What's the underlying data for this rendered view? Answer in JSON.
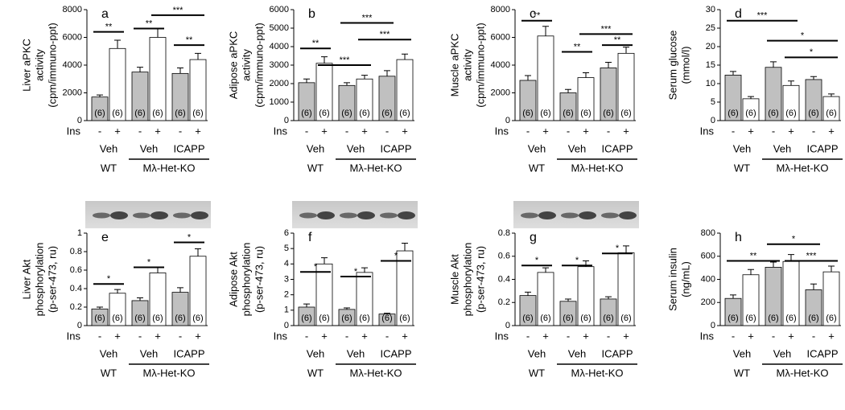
{
  "chart_data": [
    {
      "type": "bar",
      "panel": "a",
      "ylabel": [
        "Liver aPKC",
        "activity",
        "(cpm/immuno-ppt)"
      ],
      "ylim": [
        0,
        8000
      ],
      "yticks": [
        0,
        2000,
        4000,
        6000,
        8000
      ],
      "values": [
        1700,
        5200,
        3500,
        6000,
        3400,
        4400
      ],
      "errors": [
        150,
        600,
        350,
        650,
        400,
        450
      ],
      "colors": [
        "#c0c0c0",
        "#ffffff",
        "#c0c0c0",
        "#ffffff",
        "#c0c0c0",
        "#ffffff"
      ],
      "n_labels": [
        "(6)",
        "(6)",
        "(6)",
        "(6)",
        "(6)",
        "(6)"
      ],
      "significance": [
        "**",
        "**",
        "***",
        "**"
      ],
      "ins_label": "Ins",
      "ins_signs": [
        "-",
        "+",
        "-",
        "+",
        "-",
        "+"
      ],
      "treatments": [
        "Veh",
        "Veh",
        "ICAPP"
      ],
      "genotypes": [
        "WT",
        "Mλ-Het-KO"
      ]
    },
    {
      "type": "bar",
      "panel": "b",
      "ylabel": [
        "Adipose aPKC",
        "activity",
        "(cpm/immuno-ppt)"
      ],
      "ylim": [
        0,
        6000
      ],
      "yticks": [
        0,
        1000,
        2000,
        3000,
        4000,
        5000,
        6000
      ],
      "values": [
        2050,
        3100,
        1900,
        2250,
        2400,
        3300
      ],
      "errors": [
        200,
        350,
        150,
        200,
        300,
        300
      ],
      "colors": [
        "#c0c0c0",
        "#ffffff",
        "#c0c0c0",
        "#ffffff",
        "#c0c0c0",
        "#ffffff"
      ],
      "n_labels": [
        "(6)",
        "(6)",
        "(6)",
        "(6)",
        "(6)",
        "(6)"
      ],
      "significance": [
        "**",
        "***",
        "***",
        "***"
      ],
      "ins_label": "Ins",
      "ins_signs": [
        "-",
        "+",
        "-",
        "+",
        "-",
        "+"
      ],
      "treatments": [
        "Veh",
        "Veh",
        "ICAPP"
      ],
      "genotypes": [
        "WT",
        "Mλ-Het-KO"
      ]
    },
    {
      "type": "bar",
      "panel": "c",
      "ylabel": [
        "Muscle aPKC",
        "activity",
        "(cpm/immuno-ppt)"
      ],
      "ylim": [
        0,
        8000
      ],
      "yticks": [
        0,
        2000,
        4000,
        6000,
        8000
      ],
      "values": [
        2900,
        6100,
        2000,
        3100,
        3800,
        4850
      ],
      "errors": [
        350,
        700,
        250,
        350,
        400,
        450
      ],
      "colors": [
        "#c0c0c0",
        "#ffffff",
        "#c0c0c0",
        "#ffffff",
        "#c0c0c0",
        "#ffffff"
      ],
      "n_labels": [
        "(6)",
        "(6)",
        "(6)",
        "(6)",
        "(6)",
        "(6)"
      ],
      "significance": [
        "**",
        "**",
        "***",
        "**"
      ],
      "ins_label": "Ins",
      "ins_signs": [
        "-",
        "+",
        "-",
        "+",
        "-",
        "+"
      ],
      "treatments": [
        "Veh",
        "Veh",
        "ICAPP"
      ],
      "genotypes": [
        "WT",
        "Mλ-Het-KO"
      ]
    },
    {
      "type": "bar",
      "panel": "d",
      "ylabel": [
        "Serum glucose",
        "(mmol/l)"
      ],
      "ylim": [
        0,
        30
      ],
      "yticks": [
        0,
        5,
        10,
        15,
        20,
        25,
        30
      ],
      "values": [
        12.3,
        5.9,
        14.4,
        9.5,
        11.1,
        6.5
      ],
      "errors": [
        1,
        0.6,
        1.5,
        1.2,
        0.8,
        0.7
      ],
      "colors": [
        "#c0c0c0",
        "#ffffff",
        "#c0c0c0",
        "#ffffff",
        "#c0c0c0",
        "#ffffff"
      ],
      "n_labels": [
        "(6)",
        "(6)",
        "(6)",
        "(6)",
        "(6)",
        "(6)"
      ],
      "significance": [
        "***",
        "*",
        "*"
      ],
      "ins_label": "Ins",
      "ins_signs": [
        "-",
        "+",
        "-",
        "+",
        "-",
        "+"
      ],
      "treatments": [
        "Veh",
        "Veh",
        "ICAPP"
      ],
      "genotypes": [
        "WT",
        "Mλ-Het-KO"
      ]
    },
    {
      "type": "bar",
      "panel": "e",
      "ylabel": [
        "Liver Akt",
        "phosphorylation",
        "(p-ser-473, ru)"
      ],
      "ylim": [
        0,
        1
      ],
      "yticks": [
        0,
        0.2,
        0.4,
        0.6,
        0.8,
        1
      ],
      "values": [
        0.18,
        0.35,
        0.27,
        0.57,
        0.36,
        0.75
      ],
      "errors": [
        0.02,
        0.04,
        0.03,
        0.06,
        0.05,
        0.08
      ],
      "colors": [
        "#c0c0c0",
        "#ffffff",
        "#c0c0c0",
        "#ffffff",
        "#c0c0c0",
        "#ffffff"
      ],
      "n_labels": [
        "(6)",
        "(6)",
        "(6)",
        "(6)",
        "(6)",
        "(6)"
      ],
      "significance": [
        "*",
        "*",
        "*"
      ],
      "ins_label": "Ins",
      "ins_signs": [
        "-",
        "+",
        "-",
        "+",
        "-",
        "+"
      ],
      "treatments": [
        "Veh",
        "Veh",
        "ICAPP"
      ],
      "genotypes": [
        "WT",
        "Mλ-Het-KO"
      ]
    },
    {
      "type": "bar",
      "panel": "f",
      "ylabel": [
        "Adipose Akt",
        "phosphorylation",
        "(p-ser-473, ru)"
      ],
      "ylim": [
        0,
        6
      ],
      "yticks": [
        0,
        1,
        2,
        3,
        4,
        5,
        6
      ],
      "values": [
        1.2,
        4.0,
        1.05,
        3.45,
        0.75,
        4.85
      ],
      "errors": [
        0.2,
        0.4,
        0.1,
        0.3,
        0.05,
        0.5
      ],
      "colors": [
        "#c0c0c0",
        "#ffffff",
        "#c0c0c0",
        "#ffffff",
        "#c0c0c0",
        "#ffffff"
      ],
      "n_labels": [
        "(6)",
        "(6)",
        "(6)",
        "(6)",
        "(6)",
        "(6)"
      ],
      "significance": [
        "*",
        "*",
        "*"
      ],
      "ins_label": "Ins",
      "ins_signs": [
        "-",
        "+",
        "-",
        "+",
        "-",
        "+"
      ],
      "treatments": [
        "Veh",
        "Veh",
        "ICAPP"
      ],
      "genotypes": [
        "WT",
        "Mλ-Het-KO"
      ]
    },
    {
      "type": "bar",
      "panel": "g",
      "ylabel": [
        "Muscle  Akt",
        "phosphorylation",
        "(p-ser-473, ru)"
      ],
      "ylim": [
        0,
        0.8
      ],
      "yticks": [
        0,
        0.2,
        0.4,
        0.6,
        0.8
      ],
      "values": [
        0.26,
        0.46,
        0.21,
        0.51,
        0.23,
        0.63
      ],
      "errors": [
        0.03,
        0.04,
        0.02,
        0.05,
        0.02,
        0.06
      ],
      "colors": [
        "#c0c0c0",
        "#ffffff",
        "#c0c0c0",
        "#ffffff",
        "#c0c0c0",
        "#ffffff"
      ],
      "n_labels": [
        "(6)",
        "(6)",
        "(6)",
        "(6)",
        "(6)",
        "(6)"
      ],
      "significance": [
        "*",
        "*",
        "*"
      ],
      "ins_label": "Ins",
      "ins_signs": [
        "-",
        "+",
        "-",
        "+",
        "-",
        "+"
      ],
      "treatments": [
        "Veh",
        "Veh",
        "ICAPP"
      ],
      "genotypes": [
        "WT",
        "Mλ-Het-KO"
      ]
    },
    {
      "type": "bar",
      "panel": "h",
      "ylabel": [
        "Serum  insulin",
        "(ng/mL)"
      ],
      "ylim": [
        0,
        800
      ],
      "yticks": [
        0,
        200,
        400,
        600,
        800
      ],
      "values": [
        235,
        440,
        505,
        555,
        310,
        465
      ],
      "errors": [
        30,
        45,
        45,
        60,
        50,
        50
      ],
      "colors": [
        "#c0c0c0",
        "#ffffff",
        "#c0c0c0",
        "#ffffff",
        "#c0c0c0",
        "#ffffff"
      ],
      "n_labels": [
        "(6)",
        "(6)",
        "(6)",
        "(6)",
        "(6)",
        "(6)"
      ],
      "significance": [
        "**",
        "*",
        "***"
      ],
      "ins_label": "Ins",
      "ins_signs": [
        "-",
        "+",
        "-",
        "+",
        "-",
        "+"
      ],
      "treatments": [
        "Veh",
        "Veh",
        "ICAPP"
      ],
      "genotypes": [
        "WT",
        "Mλ-Het-KO"
      ]
    }
  ]
}
